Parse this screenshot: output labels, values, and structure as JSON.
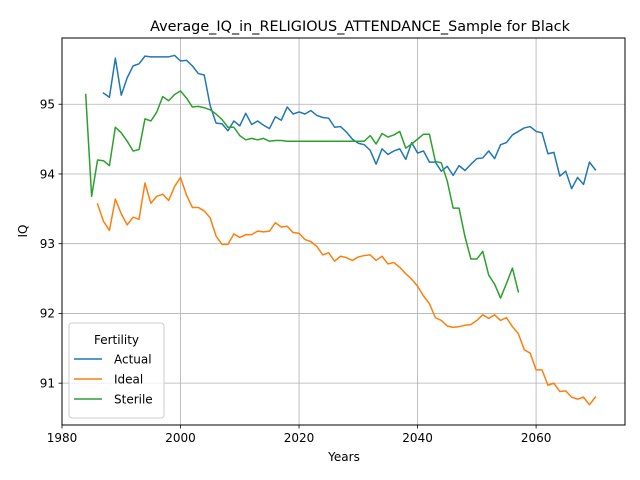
{
  "chart_data": {
    "type": "line",
    "title": "Average_IQ_in_RELIGIOUS_ATTENDANCE_Sample for Black",
    "xlabel": "Years",
    "ylabel": "IQ",
    "xlim": [
      1980,
      2075
    ],
    "ylim": [
      90.4,
      95.95
    ],
    "xticks": [
      1980,
      2000,
      2020,
      2040,
      2060
    ],
    "yticks": [
      91,
      92,
      93,
      94,
      95
    ],
    "grid": true,
    "legend": {
      "title": "Fertility",
      "placement": "lower-left"
    },
    "series": [
      {
        "name": "Actual",
        "color": "#1f77b4",
        "x": [
          1987,
          1988,
          1989,
          1990,
          1991,
          1992,
          1993,
          1994,
          1995,
          1996,
          1997,
          1998,
          1999,
          2000,
          2001,
          2002,
          2003,
          2004,
          2005,
          2006,
          2007,
          2008,
          2009,
          2010,
          2011,
          2012,
          2013,
          2014,
          2015,
          2016,
          2017,
          2018,
          2019,
          2020,
          2021,
          2022,
          2023,
          2024,
          2025,
          2026,
          2027,
          2028,
          2029,
          2030,
          2031,
          2032,
          2033,
          2034,
          2035,
          2036,
          2037,
          2038,
          2039,
          2040,
          2041,
          2042,
          2043,
          2044,
          2045,
          2046,
          2047,
          2048,
          2049,
          2050,
          2051,
          2052,
          2053,
          2054,
          2055,
          2056,
          2057,
          2058,
          2059,
          2060,
          2061,
          2062,
          2063,
          2064,
          2065,
          2066,
          2067,
          2068,
          2069,
          2070
        ],
        "y": [
          95.16,
          95.1,
          95.66,
          95.13,
          95.38,
          95.55,
          95.58,
          95.69,
          95.68,
          95.68,
          95.68,
          95.68,
          95.7,
          95.62,
          95.63,
          95.55,
          95.44,
          95.42,
          94.98,
          94.73,
          94.72,
          94.62,
          94.76,
          94.69,
          94.87,
          94.71,
          94.76,
          94.7,
          94.65,
          94.82,
          94.77,
          94.96,
          94.86,
          94.89,
          94.86,
          94.91,
          94.84,
          94.81,
          94.8,
          94.67,
          94.68,
          94.6,
          94.5,
          94.44,
          94.42,
          94.34,
          94.14,
          94.36,
          94.28,
          94.33,
          94.36,
          94.21,
          94.45,
          94.3,
          94.33,
          94.17,
          94.17,
          94.04,
          94.11,
          93.98,
          94.12,
          94.05,
          94.14,
          94.22,
          94.23,
          94.33,
          94.22,
          94.42,
          94.45,
          94.56,
          94.61,
          94.66,
          94.68,
          94.61,
          94.59,
          94.29,
          94.31,
          93.97,
          94.04,
          93.79,
          93.95,
          93.85,
          94.17,
          94.06
        ]
      },
      {
        "name": "Ideal",
        "color": "#ff7f0e",
        "x": [
          1986,
          1987,
          1988,
          1989,
          1990,
          1991,
          1992,
          1993,
          1994,
          1995,
          1996,
          1997,
          1998,
          1999,
          2000,
          2001,
          2002,
          2003,
          2004,
          2005,
          2006,
          2007,
          2008,
          2009,
          2010,
          2011,
          2012,
          2013,
          2014,
          2015,
          2016,
          2017,
          2018,
          2019,
          2020,
          2021,
          2022,
          2023,
          2024,
          2025,
          2026,
          2027,
          2028,
          2029,
          2030,
          2031,
          2032,
          2033,
          2034,
          2035,
          2036,
          2037,
          2038,
          2039,
          2040,
          2041,
          2042,
          2043,
          2044,
          2045,
          2046,
          2047,
          2048,
          2049,
          2050,
          2051,
          2052,
          2053,
          2054,
          2055,
          2056,
          2057,
          2058,
          2059,
          2060,
          2061,
          2062,
          2063,
          2064,
          2065,
          2066,
          2067,
          2068,
          2069,
          2070
        ],
        "y": [
          93.57,
          93.32,
          93.19,
          93.64,
          93.43,
          93.27,
          93.38,
          93.35,
          93.87,
          93.58,
          93.68,
          93.71,
          93.62,
          93.82,
          93.95,
          93.7,
          93.52,
          93.52,
          93.47,
          93.37,
          93.11,
          92.99,
          92.99,
          93.14,
          93.09,
          93.13,
          93.13,
          93.18,
          93.17,
          93.18,
          93.3,
          93.24,
          93.25,
          93.16,
          93.15,
          93.06,
          93.03,
          92.96,
          92.84,
          92.87,
          92.75,
          92.82,
          92.8,
          92.76,
          92.81,
          92.83,
          92.84,
          92.76,
          92.82,
          92.71,
          92.73,
          92.66,
          92.57,
          92.49,
          92.39,
          92.25,
          92.14,
          91.94,
          91.9,
          91.82,
          91.8,
          91.81,
          91.83,
          91.84,
          91.9,
          91.98,
          91.93,
          91.98,
          91.9,
          91.94,
          91.81,
          91.71,
          91.48,
          91.43,
          91.19,
          91.19,
          90.97,
          91.0,
          90.88,
          90.89,
          90.8,
          90.77,
          90.8,
          90.69,
          90.8
        ]
      },
      {
        "name": "Sterile",
        "color": "#2ca02c",
        "x": [
          1984,
          1985,
          1986,
          1987,
          1988,
          1989,
          1990,
          1991,
          1992,
          1993,
          1994,
          1995,
          1996,
          1997,
          1998,
          1999,
          2000,
          2001,
          2002,
          2003,
          2004,
          2005,
          2006,
          2007,
          2008,
          2009,
          2010,
          2011,
          2012,
          2013,
          2014,
          2015,
          2016,
          2017,
          2018,
          2019,
          2020,
          2021,
          2022,
          2023,
          2024,
          2025,
          2026,
          2027,
          2028,
          2029,
          2030,
          2031,
          2032,
          2033,
          2034,
          2035,
          2036,
          2037,
          2038,
          2039,
          2040,
          2041,
          2042,
          2043,
          2044,
          2045,
          2046,
          2047,
          2048,
          2049,
          2050,
          2051,
          2052,
          2053,
          2054,
          2055,
          2056,
          2057
        ],
        "y": [
          95.14,
          93.68,
          94.2,
          94.19,
          94.12,
          94.67,
          94.59,
          94.47,
          94.33,
          94.35,
          94.79,
          94.76,
          94.89,
          95.11,
          95.05,
          95.14,
          95.19,
          95.09,
          94.96,
          94.97,
          94.95,
          94.92,
          94.86,
          94.78,
          94.67,
          94.67,
          94.55,
          94.49,
          94.51,
          94.49,
          94.51,
          94.47,
          94.48,
          94.48,
          94.47,
          94.47,
          94.47,
          94.47,
          94.47,
          94.47,
          94.47,
          94.47,
          94.47,
          94.47,
          94.47,
          94.47,
          94.47,
          94.47,
          94.55,
          94.43,
          94.58,
          94.53,
          94.56,
          94.61,
          94.37,
          94.43,
          94.5,
          94.57,
          94.57,
          94.18,
          94.16,
          93.9,
          93.51,
          93.51,
          93.1,
          92.78,
          92.78,
          92.89,
          92.55,
          92.42,
          92.22,
          92.43,
          92.65,
          92.31
        ]
      }
    ]
  }
}
